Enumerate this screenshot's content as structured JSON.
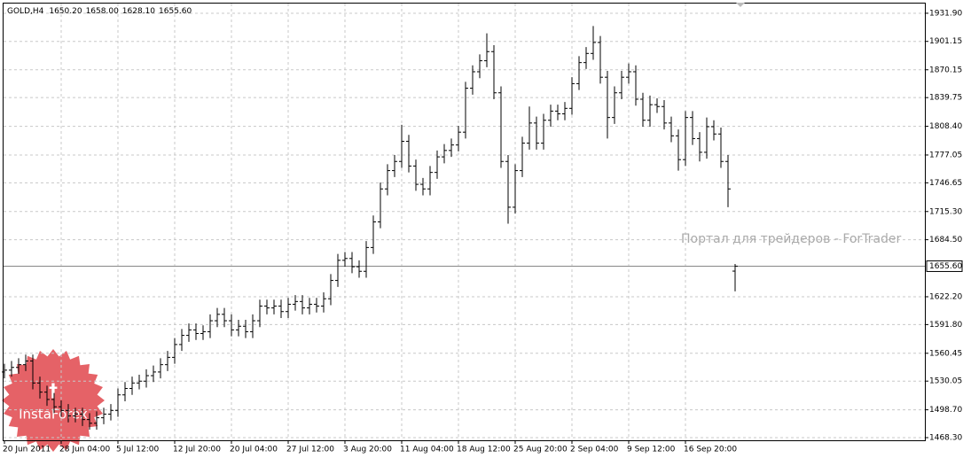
{
  "chart_data": {
    "type": "ohlc",
    "title": "GOLD,H4",
    "title_values": [
      {
        "value": 1650.2,
        "label": "1650.20"
      },
      {
        "value": 1658.0,
        "label": "1658.00"
      },
      {
        "value": 1628.1,
        "label": "1628.10"
      },
      {
        "value": 1655.6,
        "label": "1655.60"
      }
    ],
    "watermark": "Портал для трейдеров - ForTrader",
    "logo_text": "InstaForex",
    "color": "#000000",
    "grid": true,
    "ylim": [
      1465.4,
      1942.5
    ],
    "yticks": [
      {
        "value": 1931.9,
        "label": "1931.90"
      },
      {
        "value": 1901.15,
        "label": "1901.15"
      },
      {
        "value": 1870.15,
        "label": "1870.15"
      },
      {
        "value": 1839.75,
        "label": "1839.75"
      },
      {
        "value": 1808.4,
        "label": "1808.40"
      },
      {
        "value": 1777.05,
        "label": "1777.05"
      },
      {
        "value": 1746.65,
        "label": "1746.65"
      },
      {
        "value": 1715.3,
        "label": "1715.30"
      },
      {
        "value": 1684.5,
        "label": "1684.50"
      },
      {
        "value": 1622.2,
        "label": "1622.20"
      },
      {
        "value": 1591.8,
        "label": "1591.80"
      },
      {
        "value": 1560.45,
        "label": "1560.45"
      },
      {
        "value": 1530.05,
        "label": "1530.05"
      },
      {
        "value": 1498.7,
        "label": "1498.70"
      },
      {
        "value": 1468.3,
        "label": "1468.30"
      }
    ],
    "current_price": {
      "value": 1655.6,
      "label": "1655.60"
    },
    "categories": [
      "20 Jun 2011",
      null,
      null,
      null,
      null,
      null,
      null,
      null,
      "28 Jun 04:00",
      null,
      null,
      null,
      null,
      null,
      null,
      null,
      "5 Jul 12:00",
      null,
      null,
      null,
      null,
      null,
      null,
      null,
      "12 Jul 20:00",
      null,
      null,
      null,
      null,
      null,
      null,
      null,
      "20 Jul 04:00",
      null,
      null,
      null,
      null,
      null,
      null,
      null,
      "27 Jul 12:00",
      null,
      null,
      null,
      null,
      null,
      null,
      null,
      "3 Aug 20:00",
      null,
      null,
      null,
      null,
      null,
      null,
      null,
      "11 Aug 04:00",
      null,
      null,
      null,
      null,
      null,
      null,
      null,
      "18 Aug 12:00",
      null,
      null,
      null,
      null,
      null,
      null,
      null,
      "25 Aug 20:00",
      null,
      null,
      null,
      null,
      null,
      null,
      null,
      "2 Sep 04:00",
      null,
      null,
      null,
      null,
      null,
      null,
      null,
      "9 Sep 12:00",
      null,
      null,
      null,
      null,
      null,
      null,
      null,
      "16 Sep 20:00",
      null,
      null,
      null,
      null,
      null,
      null,
      null
    ],
    "open": [
      1540,
      1542,
      1545,
      1548,
      1552,
      1528,
      1518,
      1510,
      1502,
      1498,
      1492,
      1494,
      1488,
      1484,
      1490,
      1494,
      1498,
      1515,
      1522,
      1528,
      1530,
      1536,
      1540,
      1548,
      1556,
      1570,
      1580,
      1586,
      1582,
      1584,
      1596,
      1603,
      1596,
      1586,
      1590,
      1584,
      1596,
      1612,
      1610,
      1612,
      1606,
      1614,
      1617,
      1610,
      1614,
      1612,
      1620,
      1640,
      1662,
      1664,
      1655,
      1650,
      1676,
      1704,
      1740,
      1760,
      1770,
      1792,
      1765,
      1745,
      1740,
      1758,
      1775,
      1782,
      1788,
      1802,
      1850,
      1868,
      1880,
      1890,
      1845,
      1770,
      1720,
      1760,
      1790,
      1812,
      1790,
      1815,
      1825,
      1822,
      1828,
      1855,
      1878,
      1888,
      1900,
      1862,
      1818,
      1845,
      1862,
      1868,
      1838,
      1815,
      1832,
      1830,
      1812,
      1798,
      1772,
      1818,
      1795,
      1780,
      1808,
      1800,
      1770,
      1650.2
    ],
    "high": [
      1549,
      1552,
      1555,
      1559,
      1559,
      1535,
      1525,
      1517,
      1509,
      1505,
      1501,
      1501,
      1495,
      1497,
      1501,
      1505,
      1522,
      1529,
      1535,
      1537,
      1543,
      1547,
      1555,
      1563,
      1577,
      1587,
      1593,
      1593,
      1591,
      1603,
      1610,
      1610,
      1603,
      1597,
      1597,
      1603,
      1619,
      1619,
      1619,
      1619,
      1621,
      1624,
      1624,
      1621,
      1621,
      1627,
      1647,
      1669,
      1671,
      1671,
      1662,
      1683,
      1711,
      1747,
      1767,
      1777,
      1810,
      1799,
      1772,
      1752,
      1765,
      1782,
      1789,
      1795,
      1809,
      1857,
      1875,
      1887,
      1910,
      1897,
      1852,
      1777,
      1767,
      1797,
      1830,
      1819,
      1822,
      1832,
      1832,
      1835,
      1862,
      1885,
      1895,
      1918,
      1907,
      1869,
      1852,
      1869,
      1877,
      1875,
      1845,
      1842,
      1839,
      1837,
      1819,
      1805,
      1825,
      1825,
      1802,
      1818,
      1815,
      1807,
      1777,
      1658
    ],
    "low": [
      1533,
      1535,
      1538,
      1541,
      1521,
      1511,
      1503,
      1495,
      1491,
      1485,
      1485,
      1481,
      1477,
      1477,
      1483,
      1487,
      1491,
      1508,
      1515,
      1521,
      1523,
      1529,
      1533,
      1541,
      1549,
      1563,
      1573,
      1575,
      1575,
      1577,
      1589,
      1589,
      1579,
      1579,
      1577,
      1577,
      1589,
      1603,
      1603,
      1599,
      1599,
      1607,
      1603,
      1603,
      1605,
      1605,
      1613,
      1633,
      1655,
      1648,
      1643,
      1643,
      1669,
      1697,
      1733,
      1753,
      1763,
      1758,
      1738,
      1733,
      1733,
      1751,
      1768,
      1775,
      1781,
      1795,
      1843,
      1861,
      1873,
      1838,
      1763,
      1702,
      1713,
      1753,
      1783,
      1783,
      1783,
      1808,
      1815,
      1815,
      1821,
      1848,
      1871,
      1881,
      1855,
      1795,
      1811,
      1838,
      1855,
      1831,
      1808,
      1808,
      1823,
      1805,
      1791,
      1760,
      1765,
      1788,
      1770,
      1773,
      1793,
      1763,
      1720,
      1628.1
    ],
    "close": [
      1542,
      1545,
      1548,
      1552,
      1528,
      1518,
      1510,
      1502,
      1498,
      1492,
      1494,
      1488,
      1484,
      1490,
      1494,
      1498,
      1515,
      1522,
      1528,
      1530,
      1536,
      1540,
      1548,
      1556,
      1570,
      1580,
      1586,
      1582,
      1584,
      1596,
      1603,
      1596,
      1586,
      1590,
      1584,
      1596,
      1612,
      1610,
      1612,
      1606,
      1614,
      1617,
      1610,
      1614,
      1612,
      1620,
      1640,
      1662,
      1664,
      1655,
      1650,
      1676,
      1704,
      1740,
      1760,
      1770,
      1792,
      1765,
      1745,
      1740,
      1758,
      1775,
      1782,
      1788,
      1802,
      1850,
      1868,
      1880,
      1890,
      1845,
      1770,
      1720,
      1760,
      1790,
      1812,
      1790,
      1815,
      1825,
      1822,
      1828,
      1855,
      1878,
      1888,
      1900,
      1862,
      1818,
      1845,
      1862,
      1868,
      1838,
      1815,
      1832,
      1830,
      1812,
      1798,
      1772,
      1818,
      1795,
      1780,
      1808,
      1800,
      1770,
      1740,
      1655.6
    ]
  }
}
